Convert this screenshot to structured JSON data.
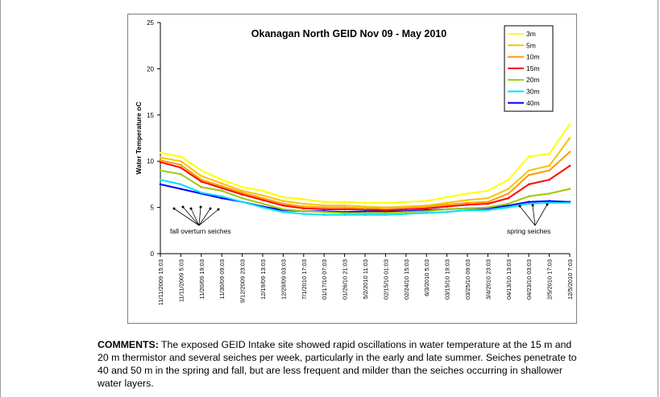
{
  "chart_data": {
    "type": "line",
    "title": "Okanagan North GEID Nov 09 - May 2010",
    "ylabel": "Water Temperature oC",
    "xlabel": "",
    "ylim": [
      0,
      25
    ],
    "yticks": [
      "0",
      "5",
      "10",
      "15",
      "20",
      "25"
    ],
    "x_tick_labels": [
      "11/11/2009 15:03",
      "11/11/2009 5:03",
      "11/20/09 19:03",
      "11/30/09 09:03",
      "9/12/2009 23:03",
      "12/19/09 13:03",
      "12/29/09 03:03",
      "7/1/2010 17:03",
      "01/17/10 07:03",
      "01/26/10 21:03",
      "5/2/2010 11:03",
      "02/15/10 01:03",
      "02/24/10 15:03",
      "6/3/2010 5:03",
      "03/15/10 19:03",
      "03/25/10 09:03",
      "3/4/2010 23:03",
      "04/13/10 13:03",
      "04/23/10 03:03",
      "2/5/2010 17:03",
      "12/5/2010 7:03"
    ],
    "legend_position": "top-right",
    "series": [
      {
        "name": "3m",
        "color": "#ffff00",
        "values": [
          10.9,
          10.5,
          9.0,
          8.0,
          7.2,
          6.8,
          6.1,
          5.9,
          5.6,
          5.6,
          5.5,
          5.5,
          5.6,
          5.7,
          6.1,
          6.5,
          6.8,
          8.0,
          10.5,
          10.8,
          14.0
        ]
      },
      {
        "name": "5m",
        "color": "#f5c400",
        "values": [
          10.4,
          10.0,
          8.4,
          7.6,
          6.8,
          6.3,
          5.7,
          5.4,
          5.2,
          5.2,
          5.1,
          5.0,
          5.1,
          5.2,
          5.5,
          5.8,
          6.0,
          7.0,
          9.0,
          9.5,
          12.5
        ]
      },
      {
        "name": "10m",
        "color": "#ff9900",
        "values": [
          10.1,
          9.6,
          8.0,
          7.3,
          6.6,
          6.0,
          5.4,
          5.1,
          5.0,
          5.0,
          4.9,
          4.9,
          5.0,
          5.1,
          5.3,
          5.5,
          5.6,
          6.5,
          8.5,
          9.0,
          11.0
        ]
      },
      {
        "name": "15m",
        "color": "#ff0000",
        "values": [
          9.9,
          9.3,
          7.8,
          7.1,
          6.4,
          5.8,
          5.2,
          4.9,
          4.8,
          4.8,
          4.8,
          4.7,
          4.8,
          4.9,
          5.1,
          5.3,
          5.4,
          6.0,
          7.5,
          8.0,
          9.5
        ]
      },
      {
        "name": "20m",
        "color": "#99cc00",
        "values": [
          9.0,
          8.6,
          7.2,
          6.8,
          6.0,
          5.4,
          4.8,
          4.6,
          4.5,
          4.4,
          4.4,
          4.4,
          4.5,
          4.6,
          4.8,
          4.9,
          5.0,
          5.4,
          6.2,
          6.5,
          7.0
        ]
      },
      {
        "name": "30m",
        "color": "#00e0ff",
        "values": [
          8.0,
          7.5,
          6.6,
          6.2,
          5.6,
          5.0,
          4.5,
          4.3,
          4.2,
          4.2,
          4.2,
          4.2,
          4.3,
          4.4,
          4.5,
          4.7,
          4.7,
          5.0,
          5.4,
          5.5,
          5.5
        ]
      },
      {
        "name": "40m",
        "color": "#0000ff",
        "values": [
          7.5,
          7.0,
          6.5,
          6.0,
          5.6,
          5.1,
          4.7,
          4.6,
          4.6,
          4.5,
          4.6,
          4.6,
          4.6,
          4.7,
          4.8,
          4.9,
          4.9,
          5.2,
          5.6,
          5.7,
          5.6
        ]
      }
    ],
    "annotations": [
      {
        "text": "fall overturn seiches"
      },
      {
        "text": "spring seiches"
      }
    ]
  },
  "comments": {
    "label": "COMMENTS:",
    "text": " The exposed GEID Intake site showed rapid oscillations in water temperature at the 15 m and 20 m thermistor and several seiches per week, particularly in the early and late summer. Seiches penetrate to 40 and 50 m in the spring and fall, but are less frequent and milder than the seiches occurring in shallower water layers."
  }
}
